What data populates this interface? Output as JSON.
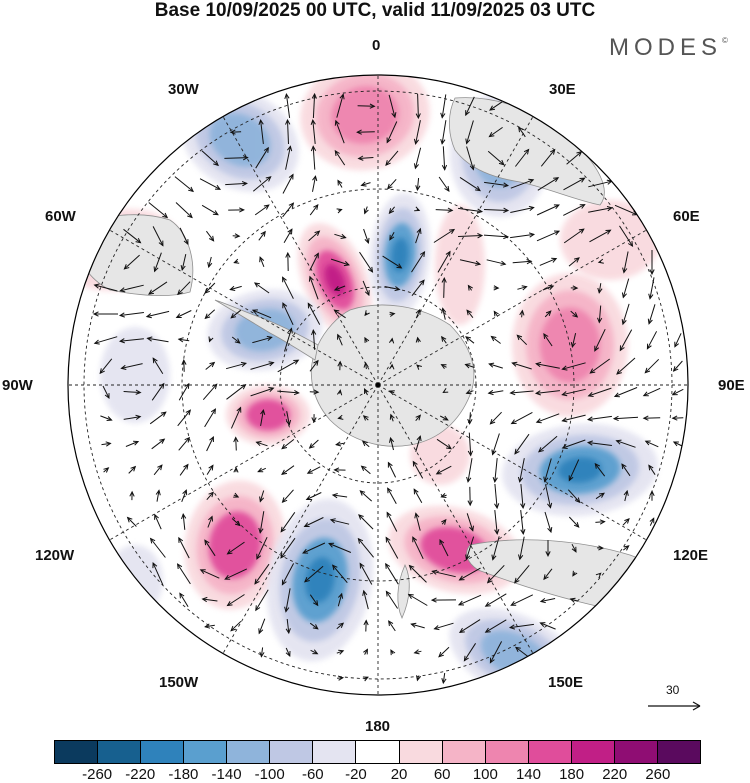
{
  "title": "Base 10/09/2025 00 UTC, valid 11/09/2025 03 UTC",
  "brand": {
    "name": "MODES",
    "mark": "©"
  },
  "longitude_labels": {
    "lon_0": "0",
    "lon_30e": "30E",
    "lon_60e": "60E",
    "lon_90e": "90E",
    "lon_120e": "120E",
    "lon_150e": "150E",
    "lon_180": "180",
    "lon_150w": "150W",
    "lon_120w": "120W",
    "lon_90w": "90W",
    "lon_60w": "60W",
    "lon_30w": "30W"
  },
  "vector_reference": {
    "value": "30"
  },
  "colorbar": {
    "ticks": [
      "-260",
      "-220",
      "-180",
      "-140",
      "-100",
      "-60",
      "-20",
      "20",
      "60",
      "100",
      "140",
      "180",
      "220",
      "260"
    ],
    "colors": [
      "#0b3a5e",
      "#17608f",
      "#2f82bb",
      "#5a9fcf",
      "#8fb4db",
      "#bfc8e4",
      "#e4e4f1",
      "#ffffff",
      "#f9dadf",
      "#f5b4c7",
      "#ee85af",
      "#e04d9b",
      "#c11f86",
      "#8f0d73",
      "#5a0a5e"
    ]
  },
  "colors": {
    "land": "#e6e6e6",
    "coast": "#8f8f8f",
    "grid": "#222222",
    "arrow": "#111111"
  }
}
